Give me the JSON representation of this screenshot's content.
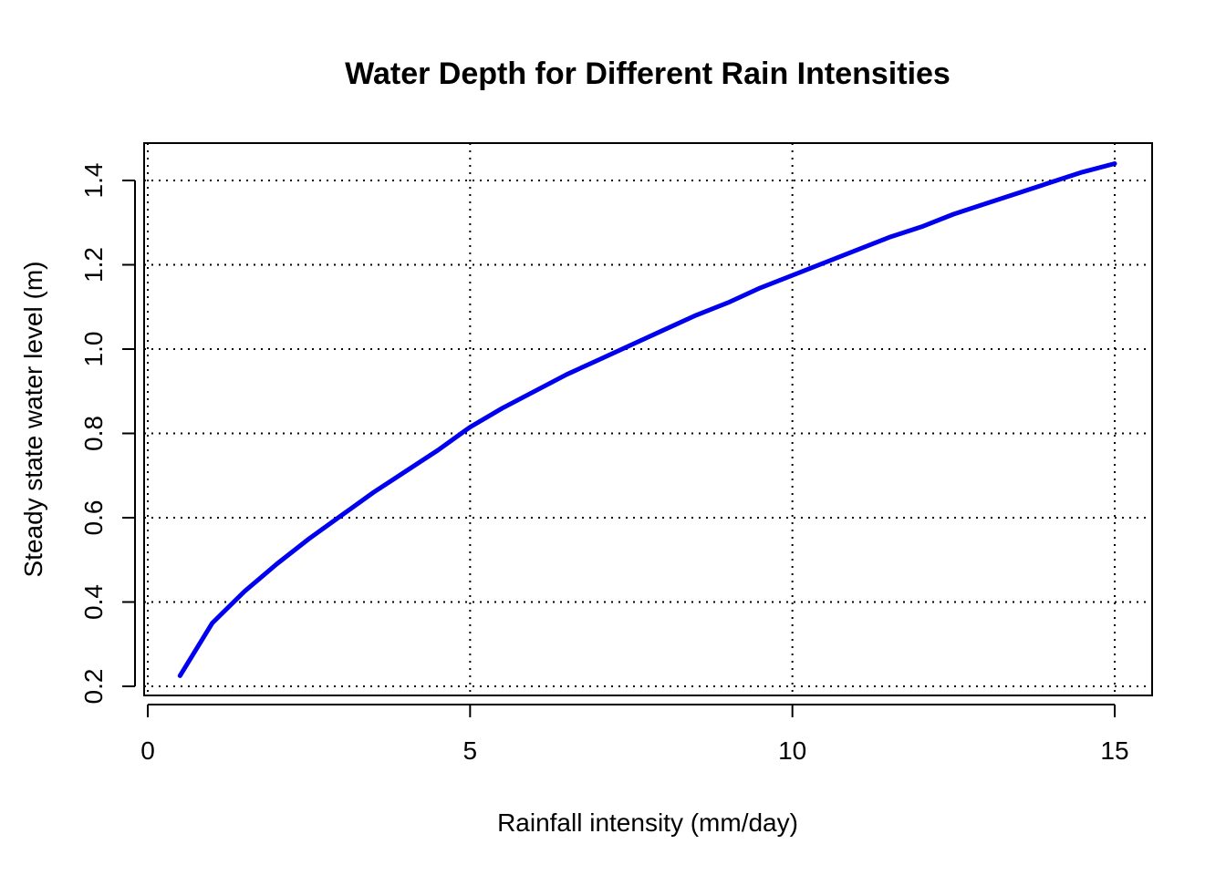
{
  "chart_data": {
    "type": "line",
    "title": "Water Depth for Different Rain Intensities",
    "xlabel": "Rainfall intensity (mm/day)",
    "ylabel": "Steady state water level (m)",
    "xlim": [
      0,
      15
    ],
    "ylim": [
      0.2,
      1.4
    ],
    "x_ticks": [
      0,
      5,
      10,
      15
    ],
    "y_ticks": [
      0.2,
      0.4,
      0.6,
      0.8,
      1.0,
      1.2,
      1.4
    ],
    "x_tick_labels": [
      "0",
      "5",
      "10",
      "15"
    ],
    "y_tick_labels": [
      "0.2",
      "0.4",
      "0.6",
      "0.8",
      "1.0",
      "1.2",
      "1.4"
    ],
    "grid": true,
    "series": [
      {
        "color": "#0000ee",
        "x": [
          0.5,
          1,
          1.5,
          2,
          2.5,
          3,
          3.5,
          4,
          4.5,
          5,
          5.5,
          6,
          6.5,
          7,
          7.5,
          8,
          8.5,
          9,
          9.5,
          10,
          10.5,
          11,
          11.5,
          12,
          12.5,
          13,
          13.5,
          14,
          14.5,
          15
        ],
        "y": [
          0.225,
          0.35,
          0.425,
          0.49,
          0.55,
          0.605,
          0.66,
          0.71,
          0.76,
          0.815,
          0.86,
          0.9,
          0.94,
          0.975,
          1.01,
          1.045,
          1.08,
          1.11,
          1.145,
          1.175,
          1.205,
          1.235,
          1.265,
          1.29,
          1.32,
          1.345,
          1.37,
          1.395,
          1.42,
          1.44
        ]
      }
    ]
  }
}
